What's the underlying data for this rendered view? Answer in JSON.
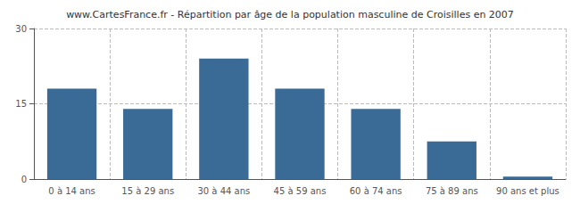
{
  "chart_data": {
    "type": "bar",
    "title": "www.CartesFrance.fr - Répartition par âge de la population masculine de Croisilles en 2007",
    "categories": [
      "0 à 14 ans",
      "15 à 29 ans",
      "30 à 44 ans",
      "45 à 59 ans",
      "60 à 74 ans",
      "75 à 89 ans",
      "90 ans et plus"
    ],
    "values": [
      18,
      14,
      24,
      18,
      14,
      7.5,
      0.5
    ],
    "color": "#3a6b96",
    "ylim": [
      0,
      30
    ],
    "yticks": [
      0,
      15,
      30
    ],
    "grid": true
  }
}
